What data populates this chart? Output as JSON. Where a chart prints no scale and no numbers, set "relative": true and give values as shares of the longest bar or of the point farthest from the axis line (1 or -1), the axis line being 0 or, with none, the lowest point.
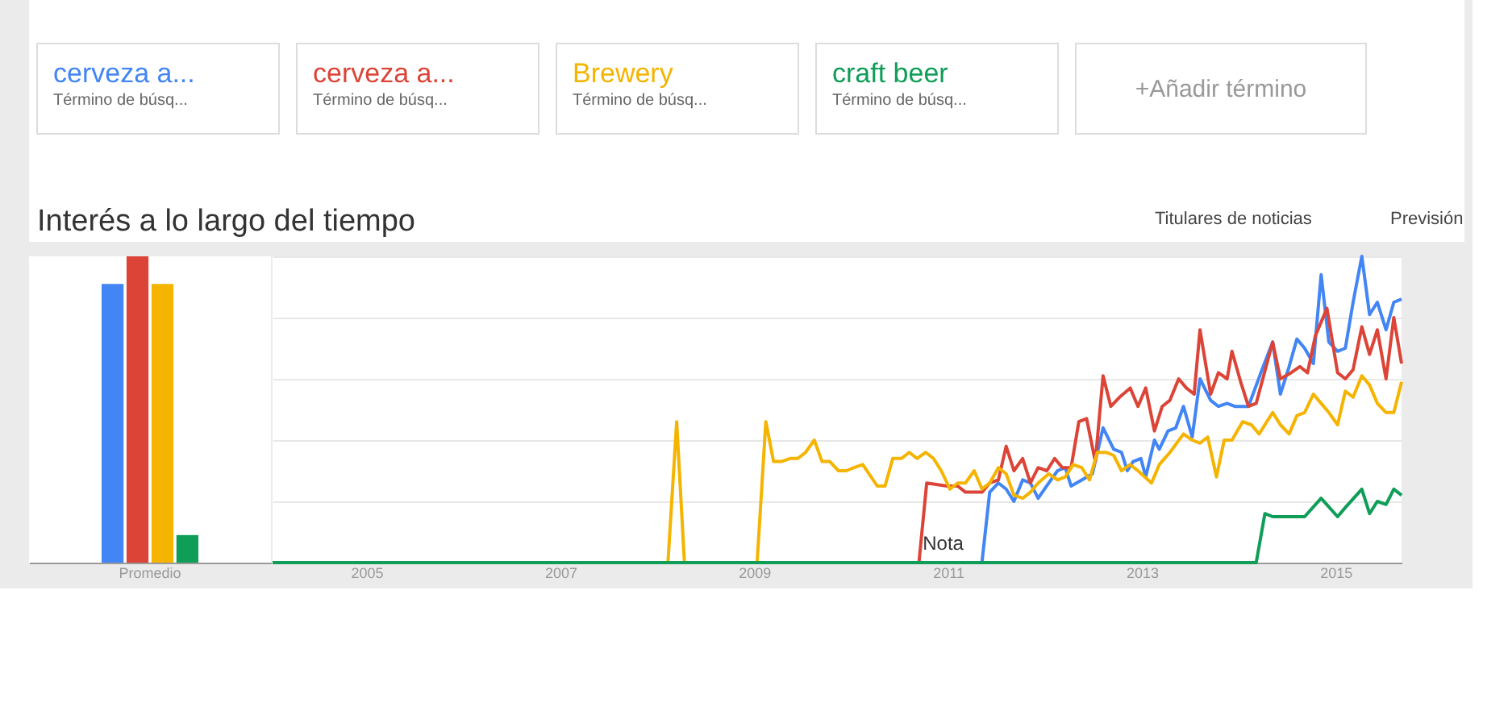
{
  "chart_data": [
    {
      "type": "bar",
      "relative": true,
      "categories": [
        "Promedio"
      ],
      "series": [
        {
          "color": "#4285f4",
          "values": [
            0.91
          ]
        },
        {
          "color": "#db4437",
          "values": [
            1
          ]
        },
        {
          "color": "#f4b400",
          "values": [
            0.91
          ]
        },
        {
          "color": "#0f9d58",
          "values": [
            0.09
          ]
        }
      ]
    },
    {
      "type": "line",
      "title": "Interés a lo largo del tiempo",
      "relative": true,
      "xlim": [
        2004.03,
        2015.68
      ],
      "xticks": [
        2005,
        2007,
        2009,
        2011,
        2013,
        2015
      ],
      "grid": "y",
      "legend": "top",
      "line_style": "solid",
      "annotations": [
        "Término de búsq...",
        "Término de búsq...",
        "Término de búsq...",
        "Término de búsq...",
        "+Añadir término",
        "Titulares de noticias",
        "Previsión",
        {
          "text": "Nota",
          "x": 2010.85,
          "y": 0
        }
      ],
      "series": [
        {
          "name": "cerveza a...",
          "color": "#4285f4",
          "x": [
            2004.03,
            2011.35,
            2011.43,
            2011.52,
            2011.6,
            2011.68,
            2011.77,
            2011.85,
            2011.93,
            2012.04,
            2012.13,
            2012.21,
            2012.27,
            2012.38,
            2012.49,
            2012.6,
            2012.71,
            2012.79,
            2012.85,
            2012.91,
            2012.99,
            2013.04,
            2013.13,
            2013.18,
            2013.27,
            2013.35,
            2013.43,
            2013.52,
            2013.6,
            2013.71,
            2013.79,
            2013.88,
            2013.96,
            2014.1,
            2014.24,
            2014.35,
            2014.43,
            2014.52,
            2014.6,
            2014.68,
            2014.77,
            2014.85,
            2014.93,
            2015.02,
            2015.1,
            2015.18,
            2015.27,
            2015.35,
            2015.43,
            2015.52,
            2015.6,
            2015.68
          ],
          "values": [
            0,
            0,
            0.23,
            0.26,
            0.24,
            0.2,
            0.27,
            0.26,
            0.21,
            0.26,
            0.3,
            0.31,
            0.25,
            0.27,
            0.29,
            0.44,
            0.37,
            0.36,
            0.3,
            0.33,
            0.34,
            0.28,
            0.4,
            0.37,
            0.43,
            0.44,
            0.51,
            0.41,
            0.6,
            0.53,
            0.51,
            0.52,
            0.51,
            0.51,
            0.63,
            0.72,
            0.55,
            0.64,
            0.73,
            0.7,
            0.65,
            0.94,
            0.72,
            0.69,
            0.7,
            0.85,
            1,
            0.81,
            0.85,
            0.76,
            0.85,
            0.86
          ]
        },
        {
          "name": "cerveza a...",
          "color": "#db4437",
          "x": [
            2004.03,
            2010.7,
            2010.78,
            2010.99,
            2011.1,
            2011.18,
            2011.35,
            2011.43,
            2011.52,
            2011.6,
            2011.68,
            2011.77,
            2011.85,
            2011.93,
            2012.02,
            2012.1,
            2012.18,
            2012.27,
            2012.35,
            2012.43,
            2012.52,
            2012.6,
            2012.68,
            2012.77,
            2012.88,
            2012.96,
            2013.04,
            2013.13,
            2013.21,
            2013.29,
            2013.38,
            2013.46,
            2013.54,
            2013.6,
            2013.71,
            2013.79,
            2013.88,
            2013.93,
            2014.02,
            2014.1,
            2014.18,
            2014.35,
            2014.43,
            2014.54,
            2014.63,
            2014.71,
            2014.79,
            2014.91,
            2015.02,
            2015.1,
            2015.18,
            2015.27,
            2015.35,
            2015.43,
            2015.52,
            2015.6,
            2015.68
          ],
          "values": [
            0,
            0,
            0.26,
            0.25,
            0.25,
            0.23,
            0.23,
            0.26,
            0.27,
            0.38,
            0.3,
            0.34,
            0.26,
            0.31,
            0.3,
            0.34,
            0.31,
            0.31,
            0.46,
            0.47,
            0.33,
            0.61,
            0.51,
            0.54,
            0.57,
            0.51,
            0.57,
            0.43,
            0.51,
            0.53,
            0.6,
            0.57,
            0.55,
            0.76,
            0.55,
            0.62,
            0.6,
            0.69,
            0.59,
            0.51,
            0.52,
            0.72,
            0.6,
            0.62,
            0.64,
            0.62,
            0.74,
            0.83,
            0.62,
            0.6,
            0.63,
            0.77,
            0.68,
            0.76,
            0.6,
            0.8,
            0.65
          ]
        },
        {
          "name": "Brewery",
          "color": "#f4b400",
          "x": [
            2004.03,
            2008.11,
            2008.2,
            2008.28,
            2009.03,
            2009.12,
            2009.2,
            2009.28,
            2009.37,
            2009.45,
            2009.53,
            2009.62,
            2009.7,
            2009.78,
            2009.87,
            2009.95,
            2010.03,
            2010.12,
            2010.27,
            2010.35,
            2010.43,
            2010.52,
            2010.6,
            2010.68,
            2010.77,
            2010.85,
            2010.93,
            2011.02,
            2011.1,
            2011.18,
            2011.27,
            2011.35,
            2011.43,
            2011.52,
            2011.6,
            2011.68,
            2011.77,
            2011.85,
            2011.93,
            2012.04,
            2012.13,
            2012.21,
            2012.29,
            2012.38,
            2012.46,
            2012.54,
            2012.63,
            2012.71,
            2012.79,
            2012.88,
            2012.96,
            2013.1,
            2013.18,
            2013.29,
            2013.43,
            2013.52,
            2013.6,
            2013.68,
            2013.77,
            2013.85,
            2013.93,
            2014.04,
            2014.13,
            2014.21,
            2014.35,
            2014.43,
            2014.52,
            2014.6,
            2014.68,
            2014.77,
            2014.85,
            2014.93,
            2015.02,
            2015.1,
            2015.18,
            2015.27,
            2015.35,
            2015.43,
            2015.52,
            2015.6,
            2015.68
          ],
          "values": [
            0,
            0,
            0.46,
            0,
            0,
            0.46,
            0.33,
            0.33,
            0.34,
            0.34,
            0.36,
            0.4,
            0.33,
            0.33,
            0.3,
            0.3,
            0.31,
            0.32,
            0.25,
            0.25,
            0.34,
            0.34,
            0.36,
            0.34,
            0.36,
            0.34,
            0.3,
            0.24,
            0.26,
            0.26,
            0.3,
            0.24,
            0.26,
            0.31,
            0.29,
            0.22,
            0.21,
            0.23,
            0.26,
            0.29,
            0.27,
            0.28,
            0.32,
            0.31,
            0.27,
            0.36,
            0.36,
            0.35,
            0.3,
            0.32,
            0.3,
            0.26,
            0.32,
            0.36,
            0.42,
            0.4,
            0.39,
            0.41,
            0.28,
            0.4,
            0.4,
            0.46,
            0.45,
            0.42,
            0.49,
            0.45,
            0.42,
            0.48,
            0.49,
            0.55,
            0.52,
            0.49,
            0.45,
            0.56,
            0.54,
            0.61,
            0.58,
            0.52,
            0.49,
            0.49,
            0.59
          ]
        },
        {
          "name": "craft beer",
          "color": "#0f9d58",
          "x": [
            2004.03,
            2014.18,
            2014.27,
            2014.35,
            2014.68,
            2014.85,
            2015.02,
            2015.1,
            2015.27,
            2015.35,
            2015.43,
            2015.52,
            2015.6,
            2015.68
          ],
          "values": [
            0,
            0,
            0.16,
            0.15,
            0.15,
            0.21,
            0.15,
            0.18,
            0.24,
            0.16,
            0.2,
            0.19,
            0.24,
            0.22
          ]
        }
      ]
    }
  ]
}
